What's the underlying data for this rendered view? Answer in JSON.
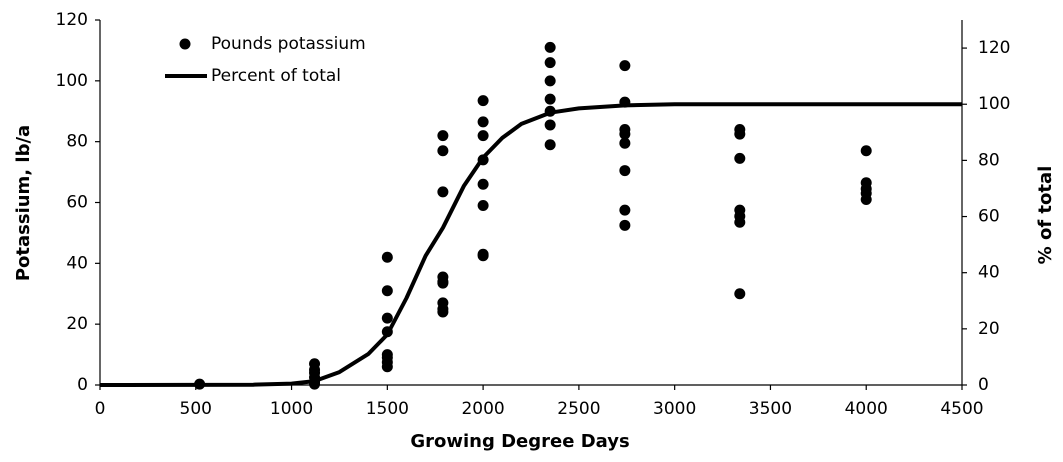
{
  "chart_data": {
    "type": "scatter",
    "xlabel": "Growing Degree Days",
    "ylabel": "Potassium, lb/a",
    "y2label": "% of total",
    "xlim": [
      0,
      4500
    ],
    "xticks": [
      0,
      500,
      1000,
      1500,
      2000,
      2500,
      3000,
      3500,
      4000,
      4500
    ],
    "ylim": [
      0,
      120
    ],
    "yticks": [
      0,
      20,
      40,
      60,
      80,
      100,
      120
    ],
    "y2lim": [
      0,
      130
    ],
    "y2ticks": [
      0,
      20,
      40,
      60,
      80,
      100,
      120
    ],
    "legend": "upper left",
    "series": [
      {
        "name": "Pounds potassium",
        "type": "scatter",
        "color": "#000000",
        "x": [
          520,
          1120,
          1120,
          1120,
          1120,
          1120,
          1120,
          1500,
          1500,
          1500,
          1500,
          1500,
          1500,
          1500,
          1500,
          1790,
          1790,
          1790,
          1790,
          1790,
          1790,
          1790,
          1790,
          1790,
          2000,
          2000,
          2000,
          2000,
          2000,
          2000,
          2000,
          2000,
          2350,
          2350,
          2350,
          2350,
          2350,
          2350,
          2350,
          2740,
          2740,
          2740,
          2740,
          2740,
          2740,
          2740,
          2740,
          3340,
          3340,
          3340,
          3340,
          3340,
          3340,
          3340,
          4000,
          4000,
          4000,
          4000,
          4000
        ],
        "values": [
          0.3,
          7,
          5,
          4,
          2.5,
          1,
          0.3,
          42,
          31,
          22,
          17.5,
          10,
          9,
          7.5,
          6,
          82,
          77,
          63.5,
          35.5,
          34,
          33.5,
          27,
          25,
          24,
          93.5,
          86.5,
          82,
          74,
          66,
          59,
          43,
          42.5,
          111,
          106,
          100,
          94,
          90,
          85.5,
          79,
          105,
          93,
          84,
          82.5,
          79.5,
          70.5,
          57.5,
          52.5,
          84,
          82.5,
          74.5,
          57.5,
          55.5,
          53.5,
          30,
          77,
          66.5,
          64.5,
          63,
          61
        ]
      },
      {
        "name": "Percent of total",
        "type": "line",
        "axis": "y2",
        "color": "#000000",
        "x": [
          0,
          800,
          1000,
          1120,
          1250,
          1400,
          1500,
          1600,
          1700,
          1790,
          1900,
          2000,
          2100,
          2200,
          2350,
          2500,
          2740,
          3000,
          3500,
          4500
        ],
        "values": [
          0,
          0.1,
          0.5,
          1.4,
          4.6,
          11,
          18,
          31,
          46,
          56,
          71,
          81,
          88,
          93,
          97,
          98.5,
          99.6,
          100,
          100,
          100
        ]
      }
    ]
  }
}
